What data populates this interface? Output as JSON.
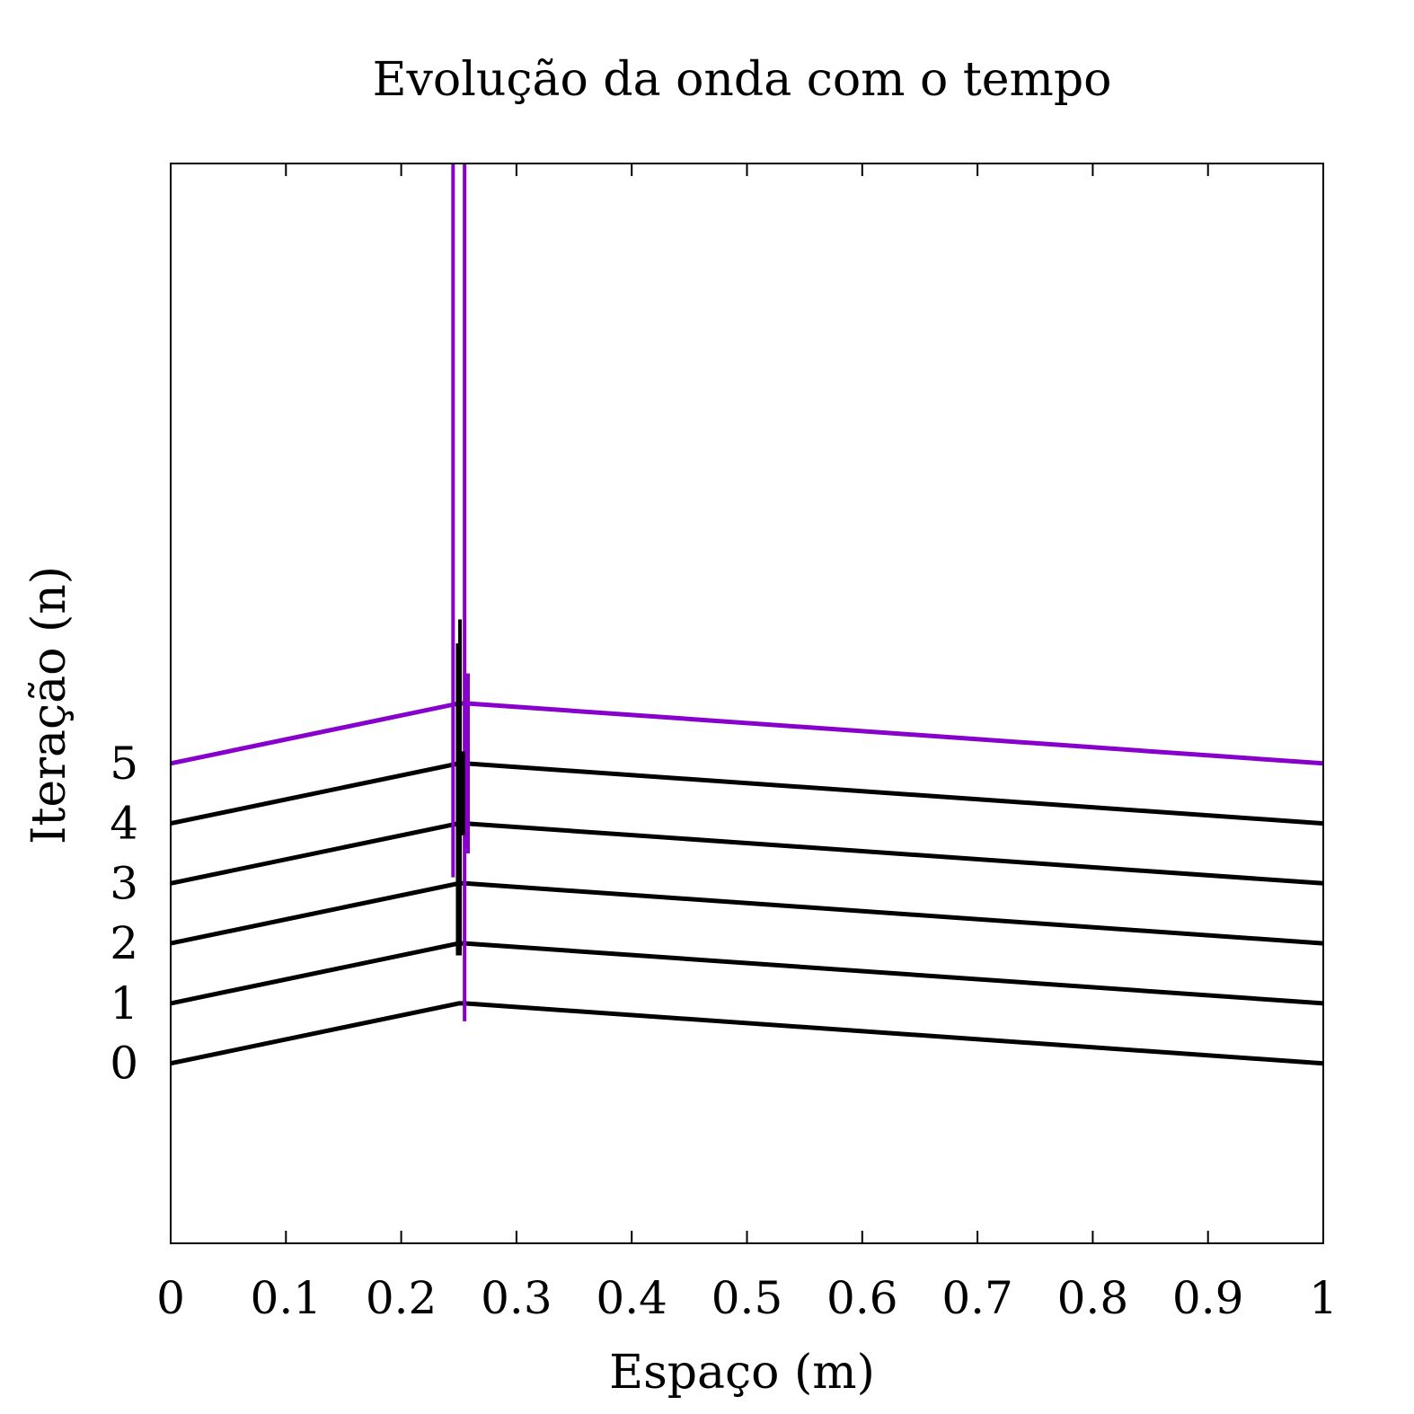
{
  "chart_data": {
    "type": "line",
    "title": "Evolução da onda com o tempo",
    "xlabel": "Espaço (m)",
    "ylabel": "Iteração (n)",
    "xlim": [
      0,
      1
    ],
    "ylim": [
      -3,
      15
    ],
    "grid": false,
    "x_ticks": [
      0,
      0.1,
      0.2,
      0.3,
      0.4,
      0.5,
      0.6,
      0.7,
      0.8,
      0.9,
      1
    ],
    "x_tick_labels": [
      "0",
      "0.1",
      "0.2",
      "0.3",
      "0.4",
      "0.5",
      "0.6",
      "0.7",
      "0.8",
      "0.9",
      "1"
    ],
    "y_ticks": [
      0,
      1,
      2,
      3,
      4,
      5
    ],
    "y_tick_labels": [
      "0",
      "1",
      "2",
      "3",
      "4",
      "5"
    ],
    "colors": {
      "history": "#000000",
      "current": "#8800cc"
    },
    "series": [
      {
        "iteration": 0,
        "color": "#000000",
        "points": [
          [
            0,
            0
          ],
          [
            0.25,
            1
          ],
          [
            0.255,
            1
          ],
          [
            1,
            0
          ]
        ]
      },
      {
        "iteration": 1,
        "color": "#000000",
        "points": [
          [
            0,
            1
          ],
          [
            0.25,
            2
          ],
          [
            0.255,
            2
          ],
          [
            1,
            1
          ]
        ]
      },
      {
        "iteration": 2,
        "color": "#000000",
        "points": [
          [
            0,
            2
          ],
          [
            0.25,
            3
          ],
          [
            0.255,
            3
          ],
          [
            1,
            2
          ]
        ]
      },
      {
        "iteration": 3,
        "color": "#000000",
        "points": [
          [
            0,
            3
          ],
          [
            0.25,
            4
          ],
          [
            0.255,
            4
          ],
          [
            1,
            3
          ]
        ]
      },
      {
        "iteration": 4,
        "color": "#000000",
        "points": [
          [
            0,
            4
          ],
          [
            0.25,
            5
          ],
          [
            0.255,
            5
          ],
          [
            1,
            4
          ]
        ]
      },
      {
        "iteration": 5,
        "color": "#8800cc",
        "points": [
          [
            0,
            5
          ],
          [
            0.25,
            6
          ],
          [
            0.257,
            6
          ],
          [
            1,
            5
          ]
        ]
      }
    ],
    "spikes": [
      {
        "color": "#8800cc",
        "x": 0.245,
        "y": [
          3.1,
          15
        ],
        "width": 4
      },
      {
        "color": "#8800cc",
        "x": 0.255,
        "y": [
          0.7,
          15
        ],
        "width": 4
      },
      {
        "color": "#8800cc",
        "x": 0.258,
        "y": [
          3.5,
          6.5
        ],
        "width": 4
      },
      {
        "color": "#000000",
        "x": 0.249,
        "y": [
          1.8,
          7
        ],
        "width": 4
      },
      {
        "color": "#000000",
        "x": 0.251,
        "y": [
          1.8,
          7.4
        ],
        "width": 4
      },
      {
        "color": "#000000",
        "x": 0.253,
        "y": [
          3.8,
          5.2
        ],
        "width": 6
      }
    ]
  }
}
